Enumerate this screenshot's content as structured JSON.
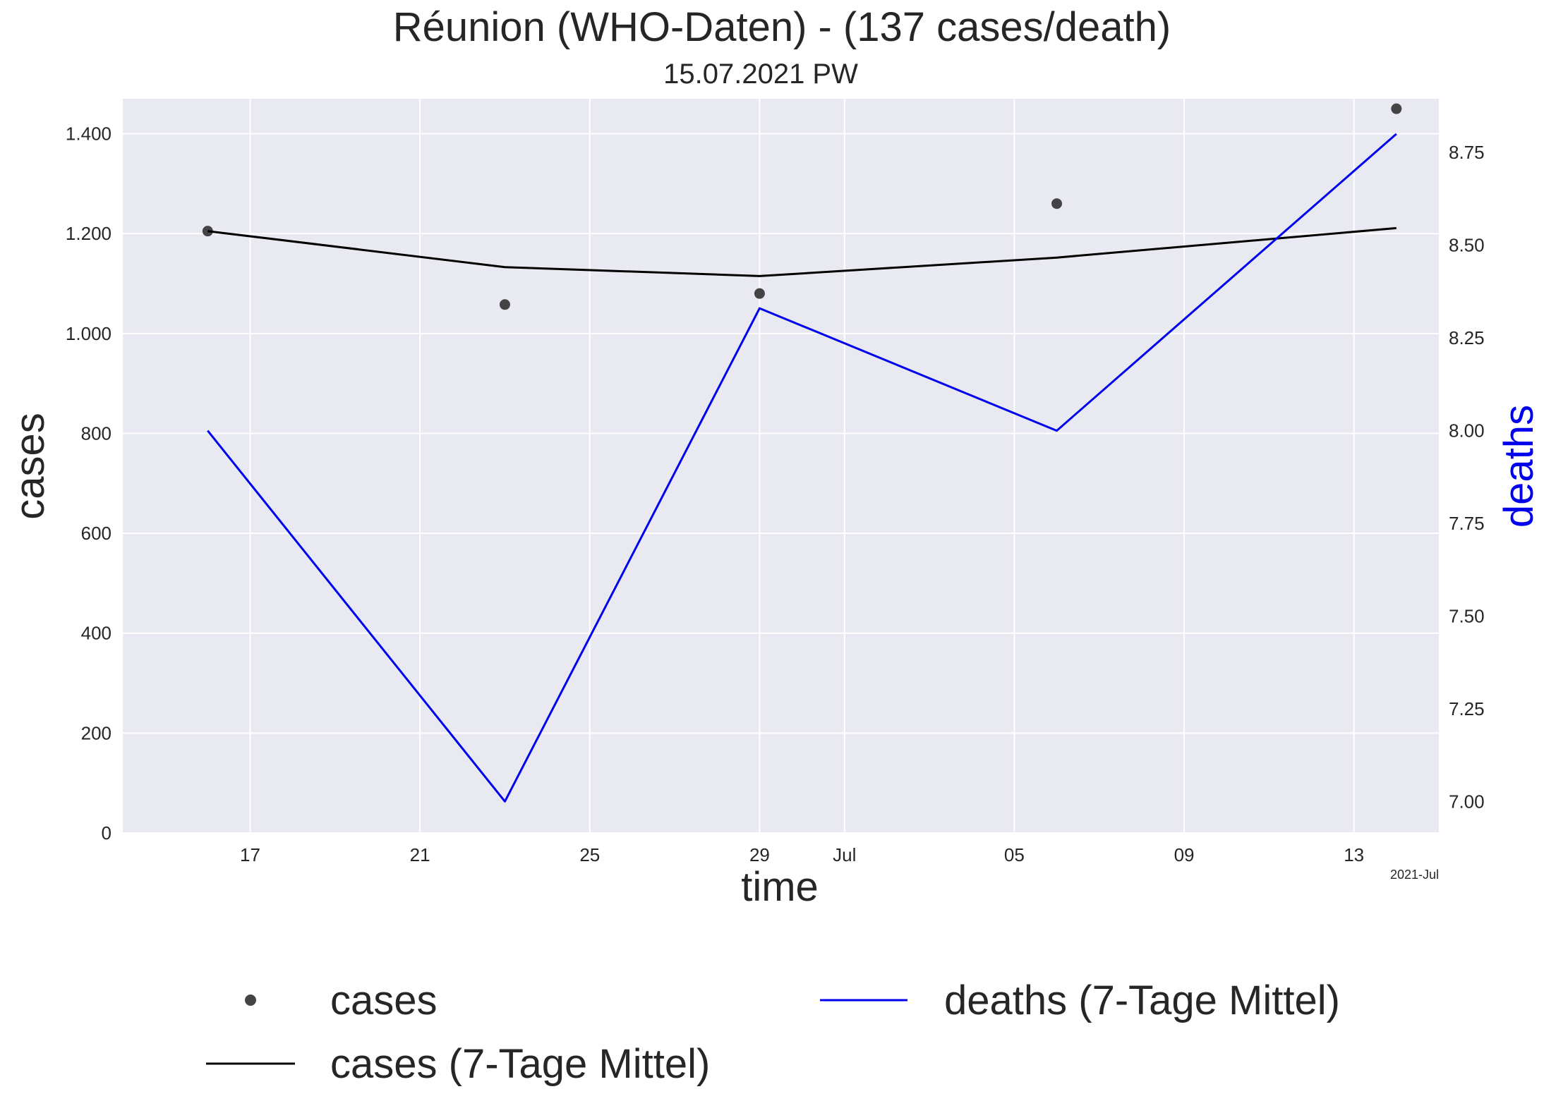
{
  "chart_data": {
    "type": "line",
    "title": "Réunion (WHO-Daten) - (137 cases/death)",
    "subtitle": "15.07.2021 PW",
    "xlabel": "time",
    "ylabel_left": "cases",
    "ylabel_right": "deaths",
    "x_offset_label": "2021-Jul",
    "x_ticks": [
      {
        "date": "2021-06-17",
        "label": "17"
      },
      {
        "date": "2021-06-21",
        "label": "21"
      },
      {
        "date": "2021-06-25",
        "label": "25"
      },
      {
        "date": "2021-06-29",
        "label": "29"
      },
      {
        "date": "2021-07-01",
        "label": "Jul"
      },
      {
        "date": "2021-07-05",
        "label": "05"
      },
      {
        "date": "2021-07-09",
        "label": "09"
      },
      {
        "date": "2021-07-13",
        "label": "13"
      }
    ],
    "x_range": [
      "2021-06-14",
      "2021-07-15"
    ],
    "y_left_ticks": [
      {
        "value": 0,
        "label": "0"
      },
      {
        "value": 200,
        "label": "200"
      },
      {
        "value": 400,
        "label": "400"
      },
      {
        "value": 600,
        "label": "600"
      },
      {
        "value": 800,
        "label": "800"
      },
      {
        "value": 1000,
        "label": "1.000"
      },
      {
        "value": 1200,
        "label": "1.200"
      },
      {
        "value": 1400,
        "label": "1.400"
      }
    ],
    "y_left_range": [
      0,
      1470
    ],
    "y_right_ticks": [
      {
        "value": 7.0,
        "label": "7.00"
      },
      {
        "value": 7.25,
        "label": "7.25"
      },
      {
        "value": 7.5,
        "label": "7.50"
      },
      {
        "value": 7.75,
        "label": "7.75"
      },
      {
        "value": 8.0,
        "label": "8.00"
      },
      {
        "value": 8.25,
        "label": "8.25"
      },
      {
        "value": 8.5,
        "label": "8.50"
      },
      {
        "value": 8.75,
        "label": "8.75"
      }
    ],
    "y_right_range": [
      6.915,
      8.895
    ],
    "grid": true,
    "background": "#e9e9f1",
    "legend_placement": "bottom",
    "series": [
      {
        "name": "cases",
        "kind": "scatter",
        "axis": "left",
        "color": "#444444",
        "points": [
          {
            "x": "2021-06-16",
            "y": 1205
          },
          {
            "x": "2021-06-23",
            "y": 1058
          },
          {
            "x": "2021-06-29",
            "y": 1080
          },
          {
            "x": "2021-07-06",
            "y": 1260
          },
          {
            "x": "2021-07-14",
            "y": 1450
          }
        ]
      },
      {
        "name": "cases (7-Tage Mittel)",
        "kind": "line",
        "axis": "left",
        "color": "#000000",
        "points": [
          {
            "x": "2021-06-16",
            "y": 1205
          },
          {
            "x": "2021-06-23",
            "y": 1133
          },
          {
            "x": "2021-06-29",
            "y": 1115
          },
          {
            "x": "2021-07-06",
            "y": 1152
          },
          {
            "x": "2021-07-14",
            "y": 1211
          }
        ]
      },
      {
        "name": "deaths (7-Tage Mittel)",
        "kind": "line",
        "axis": "right",
        "color": "#0000ee",
        "points": [
          {
            "x": "2021-06-16",
            "y": 8.0
          },
          {
            "x": "2021-06-23",
            "y": 7.0
          },
          {
            "x": "2021-06-29",
            "y": 8.33
          },
          {
            "x": "2021-07-06",
            "y": 8.0
          },
          {
            "x": "2021-07-14",
            "y": 8.8
          }
        ]
      }
    ]
  }
}
